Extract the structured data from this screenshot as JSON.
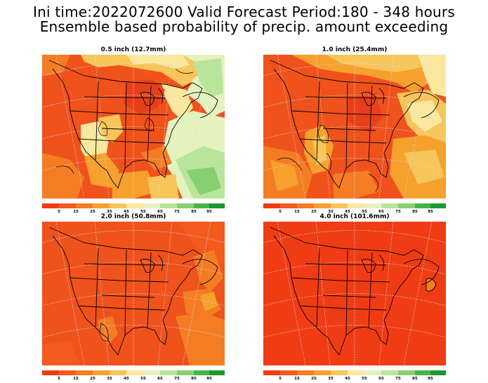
{
  "header": {
    "line1": "Ini time:2022072600  Valid Forecast Period:180 - 348 hours",
    "line2": "Ensemble based probability of precip. amount exceeding"
  },
  "colorbar": {
    "labels": [
      "5",
      "15",
      "25",
      "35",
      "45",
      "55",
      "65",
      "75",
      "85",
      "95"
    ],
    "colors": [
      "#f03c14",
      "#f25a1e",
      "#f47d24",
      "#f6a02e",
      "#f8c55a",
      "#fbe8a0",
      "#e2f3c0",
      "#b8e59a",
      "#86d072",
      "#45b548",
      "#1a9a2c"
    ]
  },
  "panels": [
    {
      "title": "0.5 inch (12.7mm)"
    },
    {
      "title": "1.0 inch (25.4mm)"
    },
    {
      "title": "2.0 inch (50.8mm)"
    },
    {
      "title": "4.0 inch (101.6mm)"
    }
  ]
}
